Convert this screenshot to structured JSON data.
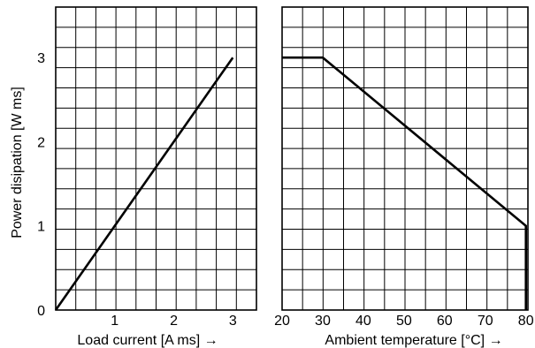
{
  "chart_data": [
    {
      "type": "line",
      "xlabel": "Load current [A ms] →",
      "ylabel": "Power disipation [W ms]",
      "xlim": [
        0,
        3.4
      ],
      "ylim": [
        0,
        3.6
      ],
      "x_ticks": [
        "1",
        "2",
        "3"
      ],
      "x_tick_values": [
        1,
        2,
        3
      ],
      "y_ticks": [
        "0",
        "1",
        "2",
        "3"
      ],
      "y_tick_values": [
        0,
        1,
        2,
        3
      ],
      "grid": true,
      "series": [
        {
          "x": [
            0,
            3
          ],
          "y": [
            0,
            3
          ]
        }
      ]
    },
    {
      "type": "line",
      "xlabel": "Ambient temperature [°C] →",
      "ylabel": "",
      "xlim": [
        20,
        80.5
      ],
      "ylim": [
        0,
        3.6
      ],
      "x_ticks": [
        "20",
        "30",
        "40",
        "50",
        "60",
        "70",
        "80"
      ],
      "x_tick_values": [
        20,
        30,
        40,
        50,
        60,
        70,
        80
      ],
      "grid": true,
      "series": [
        {
          "x": [
            20,
            30,
            80,
            80
          ],
          "y": [
            3,
            3,
            1,
            0
          ]
        }
      ]
    }
  ]
}
